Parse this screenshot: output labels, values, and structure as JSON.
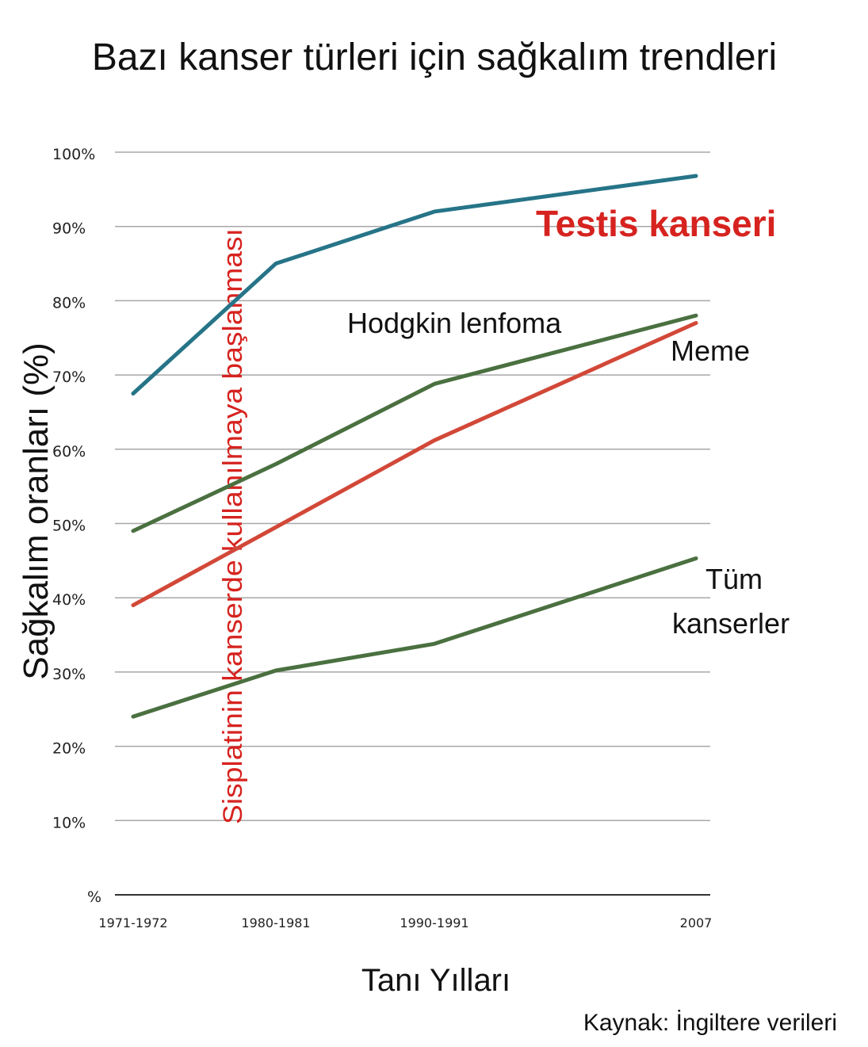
{
  "chart_data": {
    "type": "line",
    "title": "Bazı kanser türleri için sağkalım trendleri",
    "xlabel": "Tanı Yılları",
    "ylabel": "Sağkalım oranları (%)",
    "source": "Kaynak: İngiltere verileri",
    "categories": [
      "1971-1972",
      "1980-1981",
      "1990-1991",
      "2007"
    ],
    "category_positions": [
      1971.5,
      1980.5,
      1990.5,
      2007
    ],
    "ylim": [
      0,
      100
    ],
    "y_ticks": [
      {
        "value": 0,
        "label": "%"
      },
      {
        "value": 10,
        "label": "10%"
      },
      {
        "value": 20,
        "label": "20%"
      },
      {
        "value": 30,
        "label": "30%"
      },
      {
        "value": 40,
        "label": "40%"
      },
      {
        "value": 50,
        "label": "50%"
      },
      {
        "value": 60,
        "label": "60%"
      },
      {
        "value": 70,
        "label": "70%"
      },
      {
        "value": 80,
        "label": "80%"
      },
      {
        "value": 90,
        "label": "90%"
      },
      {
        "value": 100,
        "label": "100%"
      }
    ],
    "grid": true,
    "series": [
      {
        "key": "testis",
        "name": "Testis kanseri",
        "color": "#267488",
        "label_color": "#d6231f",
        "values": [
          67.5,
          85,
          92,
          96.8
        ]
      },
      {
        "key": "hodgkin",
        "name": "Hodgkin lenfoma",
        "color": "#4a7040",
        "values": [
          49,
          58,
          68.8,
          78
        ]
      },
      {
        "key": "meme",
        "name": "Meme",
        "color": "#d24838",
        "values": [
          39,
          49.5,
          61.2,
          77
        ]
      },
      {
        "key": "tum",
        "name": "Tüm kanserler",
        "name_lines": [
          "Tüm",
          "kanserler"
        ],
        "color": "#4a7040",
        "values": [
          24,
          30.2,
          33.8,
          45.3
        ]
      }
    ],
    "annotation": {
      "text": "Sisplatinin kanserde kullanılmaya başlanması",
      "color": "#d6231f",
      "orientation": "vertical"
    }
  }
}
